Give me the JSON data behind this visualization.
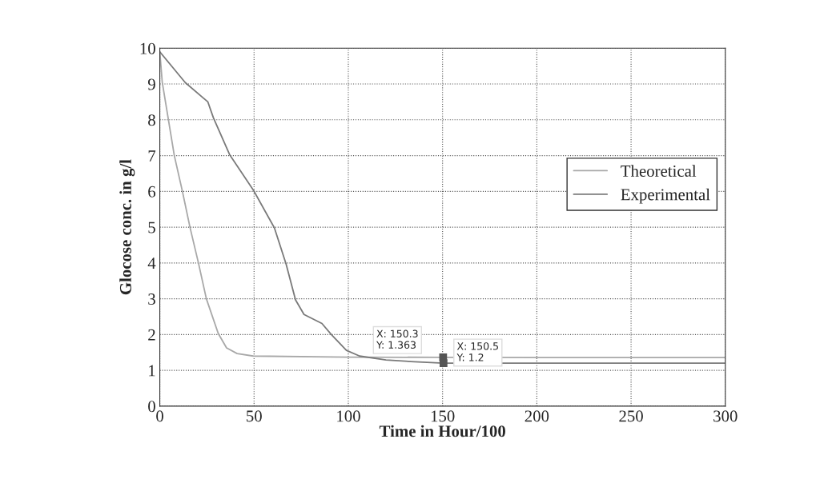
{
  "chart_data": {
    "type": "line",
    "xlabel": "Time in Hour/100",
    "ylabel": "Glocose conc. in g/l",
    "xlim": [
      0,
      300
    ],
    "xticks": [
      0,
      50,
      100,
      150,
      200,
      250,
      300
    ],
    "ylim": [
      0,
      10
    ],
    "yticks": [
      0,
      1,
      2,
      3,
      4,
      5,
      6,
      7,
      8,
      9,
      10
    ],
    "grid": true,
    "legend": "right",
    "line_style": "solid",
    "marker": "none",
    "series": [
      {
        "name": "Theoretical",
        "color": "#a8a8a8",
        "x": [
          0,
          1.3,
          7.7,
          12,
          16,
          20.5,
          24.7,
          31,
          35.4,
          41,
          49.6,
          100,
          150.3,
          200,
          300
        ],
        "values": [
          9.9,
          9.05,
          7.0,
          6.0,
          5.0,
          4.0,
          3.0,
          2.03,
          1.63,
          1.47,
          1.4,
          1.37,
          1.363,
          1.36,
          1.36
        ]
      },
      {
        "name": "Experimental",
        "color": "#7a7a7a",
        "x": [
          0,
          13.5,
          25.5,
          28.4,
          37,
          49.7,
          60.8,
          67,
          72,
          76.5,
          86,
          91,
          99,
          106,
          120,
          135,
          150.5,
          200,
          300
        ],
        "values": [
          9.9,
          9.04,
          8.5,
          8.06,
          7.03,
          6.03,
          4.98,
          3.97,
          2.97,
          2.56,
          2.31,
          2.0,
          1.56,
          1.4,
          1.29,
          1.24,
          1.2,
          1.2,
          1.2
        ]
      }
    ],
    "annotations": [
      {
        "text": "X: 150.3\nY: 1.363",
        "x": 150.3,
        "y": 1.363
      },
      {
        "text": "X: 150.5\nY: 1.2",
        "x": 150.5,
        "y": 1.2
      }
    ]
  }
}
